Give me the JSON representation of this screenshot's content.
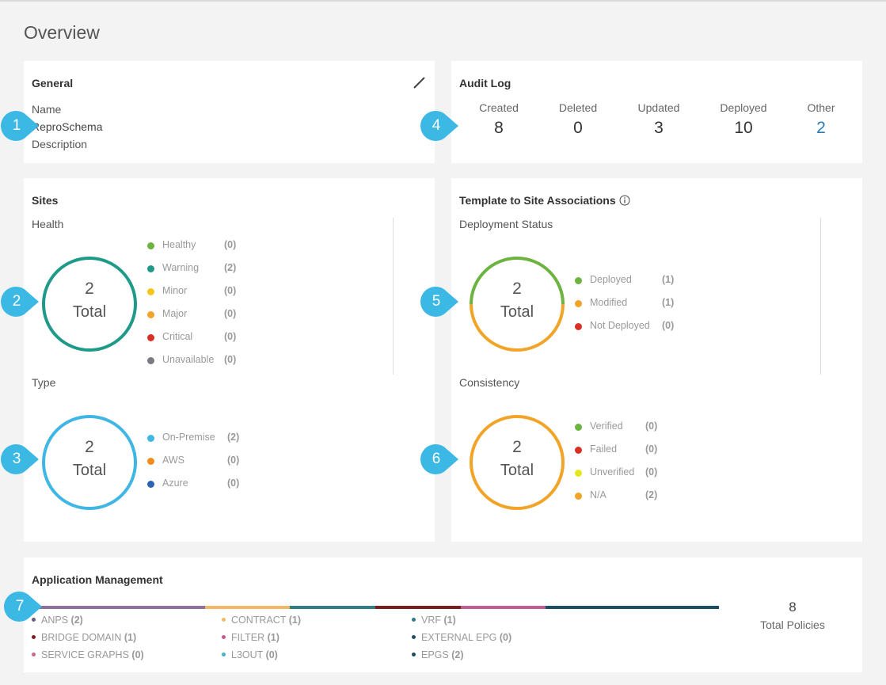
{
  "page": {
    "title": "Overview"
  },
  "general": {
    "title": "General",
    "name_label": "Name",
    "name_value": "ReproSchema",
    "description_label": "Description",
    "edit_icon": "pencil-icon"
  },
  "audit_log": {
    "title": "Audit Log",
    "items": [
      {
        "label": "Created",
        "value": "8"
      },
      {
        "label": "Deleted",
        "value": "0"
      },
      {
        "label": "Updated",
        "value": "3"
      },
      {
        "label": "Deployed",
        "value": "10"
      },
      {
        "label": "Other",
        "value": "2"
      }
    ]
  },
  "sites": {
    "title": "Sites",
    "health": {
      "heading": "Health",
      "total": "2",
      "total_label": "Total",
      "legend": [
        {
          "name": "Healthy",
          "count": "(0)",
          "color": "#6cb33f"
        },
        {
          "name": "Warning",
          "count": "(2)",
          "color": "#1f9a88"
        },
        {
          "name": "Minor",
          "count": "(0)",
          "color": "#f5c518"
        },
        {
          "name": "Major",
          "count": "(0)",
          "color": "#f1a428"
        },
        {
          "name": "Critical",
          "count": "(0)",
          "color": "#d93025"
        },
        {
          "name": "Unavailable",
          "count": "(0)",
          "color": "#7a7a7f"
        }
      ]
    },
    "type": {
      "heading": "Type",
      "total": "2",
      "total_label": "Total",
      "legend": [
        {
          "name": "On-Premise",
          "count": "(2)",
          "color": "#40b6e4"
        },
        {
          "name": "AWS",
          "count": "(0)",
          "color": "#f08c1b"
        },
        {
          "name": "Azure",
          "count": "(0)",
          "color": "#2b63b5"
        }
      ]
    }
  },
  "template_assoc": {
    "title": "Template to Site Associations",
    "info_icon": "info-icon",
    "deployment": {
      "heading": "Deployment Status",
      "total": "2",
      "total_label": "Total",
      "legend": [
        {
          "name": "Deployed",
          "count": "(1)",
          "color": "#6cb33f"
        },
        {
          "name": "Modified",
          "count": "(1)",
          "color": "#f1a428"
        },
        {
          "name": "Not Deployed",
          "count": "(0)",
          "color": "#d93025"
        }
      ]
    },
    "consistency": {
      "heading": "Consistency",
      "total": "2",
      "total_label": "Total",
      "legend": [
        {
          "name": "Verified",
          "count": "(0)",
          "color": "#6cb33f"
        },
        {
          "name": "Failed",
          "count": "(0)",
          "color": "#d93025"
        },
        {
          "name": "Unverified",
          "count": "(0)",
          "color": "#e6e61a"
        },
        {
          "name": "N/A",
          "count": "(2)",
          "color": "#f1a428"
        }
      ]
    }
  },
  "app_mgmt": {
    "title": "Application Management",
    "total": "8",
    "total_label": "Total Policies",
    "bar_segments": [
      {
        "name": "ANPS",
        "color": "#8d6fa0",
        "value": 2
      },
      {
        "name": "CONTRACT",
        "color": "#f2b866",
        "value": 1
      },
      {
        "name": "VRF",
        "color": "#2e7d86",
        "value": 1
      },
      {
        "name": "BRIDGE DOMAIN",
        "color": "#7a1f1f",
        "value": 1
      },
      {
        "name": "FILTER",
        "color": "#c55a92",
        "value": 1
      },
      {
        "name": "EPGS",
        "color": "#1a4f63",
        "value": 2
      }
    ],
    "items": [
      {
        "name": "ANPS",
        "count": "(2)",
        "color": "#6b5b7b"
      },
      {
        "name": "CONTRACT",
        "count": "(1)",
        "color": "#f2b866"
      },
      {
        "name": "VRF",
        "count": "(1)",
        "color": "#2e7d86"
      },
      {
        "name": "BRIDGE DOMAIN",
        "count": "(1)",
        "color": "#7a1f1f"
      },
      {
        "name": "FILTER",
        "count": "(1)",
        "color": "#c55a92"
      },
      {
        "name": "EXTERNAL EPG",
        "count": "(0)",
        "color": "#1a4f63"
      },
      {
        "name": "SERVICE GRAPHS",
        "count": "(0)",
        "color": "#c56a8a"
      },
      {
        "name": "L3OUT",
        "count": "(0)",
        "color": "#40b6c8"
      },
      {
        "name": "EPGS",
        "count": "(2)",
        "color": "#1a4f63"
      }
    ]
  },
  "callouts": [
    "1",
    "2",
    "3",
    "4",
    "5",
    "6",
    "7"
  ]
}
